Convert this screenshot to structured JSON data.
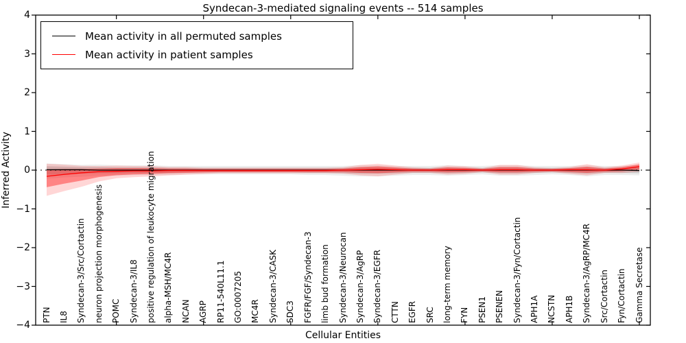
{
  "title": "Syndecan-3-mediated signaling events -- 514 samples",
  "legend": {
    "entries": [
      {
        "label": "Mean activity in all permuted samples",
        "color": "#000000"
      },
      {
        "label": "Mean activity in patient samples",
        "color": "#ff0000"
      }
    ]
  },
  "axes": {
    "ylabel": "Inferred Activity",
    "xlabel": "Cellular Entities",
    "ytick_labels": [
      "4",
      "3",
      "2",
      "1",
      "0",
      "−1",
      "−2",
      "−3",
      "−4"
    ],
    "ytick_values": [
      4,
      3,
      2,
      1,
      0,
      -1,
      -2,
      -3,
      -4
    ]
  },
  "colors": {
    "patient_line": "#ff0000",
    "permuted_line": "#000000",
    "patient_band_inner": "rgba(255,0,0,0.38)",
    "patient_band_outer": "rgba(255,0,0,0.16)",
    "permuted_band_inner": "rgba(0,0,0,0.13)",
    "permuted_band_outer": "rgba(0,0,0,0.07)"
  },
  "chart_data": {
    "type": "line",
    "title": "Syndecan-3-mediated signaling events -- 514 samples",
    "xlabel": "Cellular Entities",
    "ylabel": "Inferred Activity",
    "ylim": [
      -4,
      4
    ],
    "grid": false,
    "legend_position": "upper left",
    "zero_reference_line": 0,
    "categories": [
      "PTN",
      "IL8",
      "Syndecan-3/Src/Cortactin",
      "neuron projection morphogenesis",
      "POMC",
      "Syndecan-3/IL8",
      "positive regulation of leukocyte migration",
      "alpha-MSH/MC4R",
      "NCAN",
      "AGRP",
      "RP11-540L11.1",
      "GO:0007205",
      "MC4R",
      "Syndecan-3/CASK",
      "SDC3",
      "FGFR/FGF/Syndecan-3",
      "limb bud formation",
      "Syndecan-3/Neurocan",
      "Syndecan-3/AgRP",
      "Syndecan-3/EGFR",
      "CTTN",
      "EGFR",
      "SRC",
      "long-term memory",
      "FYN",
      "PSEN1",
      "PSENEN",
      "Syndecan-3/Fyn/Cortactin",
      "APH1A",
      "NCSTN",
      "APH1B",
      "Syndecan-3/AgRP/MC4R",
      "Src/Cortactin",
      "Fyn/Cortactin",
      "Gamma Secretase"
    ],
    "series": [
      {
        "name": "Mean activity in all permuted samples",
        "color": "#000000",
        "values": [
          0.01,
          0.01,
          0.01,
          0.0,
          0.0,
          0.0,
          0.0,
          0.0,
          0.0,
          0.0,
          0.0,
          0.0,
          0.0,
          0.0,
          0.0,
          0.0,
          0.0,
          0.0,
          0.0,
          0.0,
          0.0,
          0.0,
          0.0,
          0.0,
          0.0,
          0.0,
          0.0,
          0.0,
          0.0,
          0.0,
          0.0,
          0.0,
          0.0,
          0.0,
          -0.01
        ]
      },
      {
        "name": "Mean activity in patient samples",
        "color": "#ff0000",
        "values": [
          -0.16,
          -0.11,
          -0.07,
          -0.04,
          -0.03,
          -0.02,
          -0.02,
          -0.01,
          -0.01,
          -0.01,
          -0.01,
          -0.01,
          -0.01,
          -0.01,
          -0.01,
          -0.01,
          -0.01,
          0.0,
          0.01,
          0.02,
          0.01,
          0.0,
          0.0,
          0.01,
          0.01,
          0.0,
          0.01,
          0.01,
          0.0,
          0.0,
          0.01,
          0.01,
          0.0,
          0.03,
          0.09
        ]
      }
    ],
    "bands": [
      {
        "name": "permuted activity range",
        "upper": [
          0.1,
          0.09,
          0.08,
          0.08,
          0.07,
          0.07,
          0.07,
          0.06,
          0.06,
          0.06,
          0.06,
          0.06,
          0.06,
          0.06,
          0.06,
          0.06,
          0.06,
          0.06,
          0.07,
          0.07,
          0.06,
          0.06,
          0.06,
          0.07,
          0.06,
          0.06,
          0.07,
          0.07,
          0.06,
          0.06,
          0.06,
          0.07,
          0.06,
          0.06,
          0.07
        ],
        "lower": [
          -0.12,
          -0.1,
          -0.09,
          -0.08,
          -0.08,
          -0.07,
          -0.07,
          -0.07,
          -0.06,
          -0.06,
          -0.06,
          -0.06,
          -0.06,
          -0.06,
          -0.06,
          -0.07,
          -0.07,
          -0.08,
          -0.09,
          -0.09,
          -0.08,
          -0.07,
          -0.07,
          -0.08,
          -0.07,
          -0.06,
          -0.08,
          -0.08,
          -0.07,
          -0.06,
          -0.07,
          -0.09,
          -0.07,
          -0.07,
          -0.08
        ]
      },
      {
        "name": "patient activity range",
        "upper": [
          0.02,
          0.03,
          0.03,
          0.04,
          0.05,
          0.05,
          0.05,
          0.04,
          0.04,
          0.03,
          0.03,
          0.03,
          0.03,
          0.03,
          0.03,
          0.03,
          0.03,
          0.04,
          0.08,
          0.1,
          0.07,
          0.04,
          0.03,
          0.07,
          0.06,
          0.03,
          0.08,
          0.08,
          0.04,
          0.03,
          0.05,
          0.09,
          0.04,
          0.08,
          0.15
        ],
        "lower": [
          -0.44,
          -0.35,
          -0.27,
          -0.18,
          -0.13,
          -0.11,
          -0.1,
          -0.08,
          -0.07,
          -0.06,
          -0.05,
          -0.05,
          -0.05,
          -0.05,
          -0.05,
          -0.05,
          -0.05,
          -0.05,
          -0.07,
          -0.08,
          -0.06,
          -0.04,
          -0.04,
          -0.06,
          -0.05,
          -0.03,
          -0.06,
          -0.06,
          -0.04,
          -0.03,
          -0.05,
          -0.07,
          -0.04,
          -0.03,
          0.02
        ]
      }
    ]
  }
}
